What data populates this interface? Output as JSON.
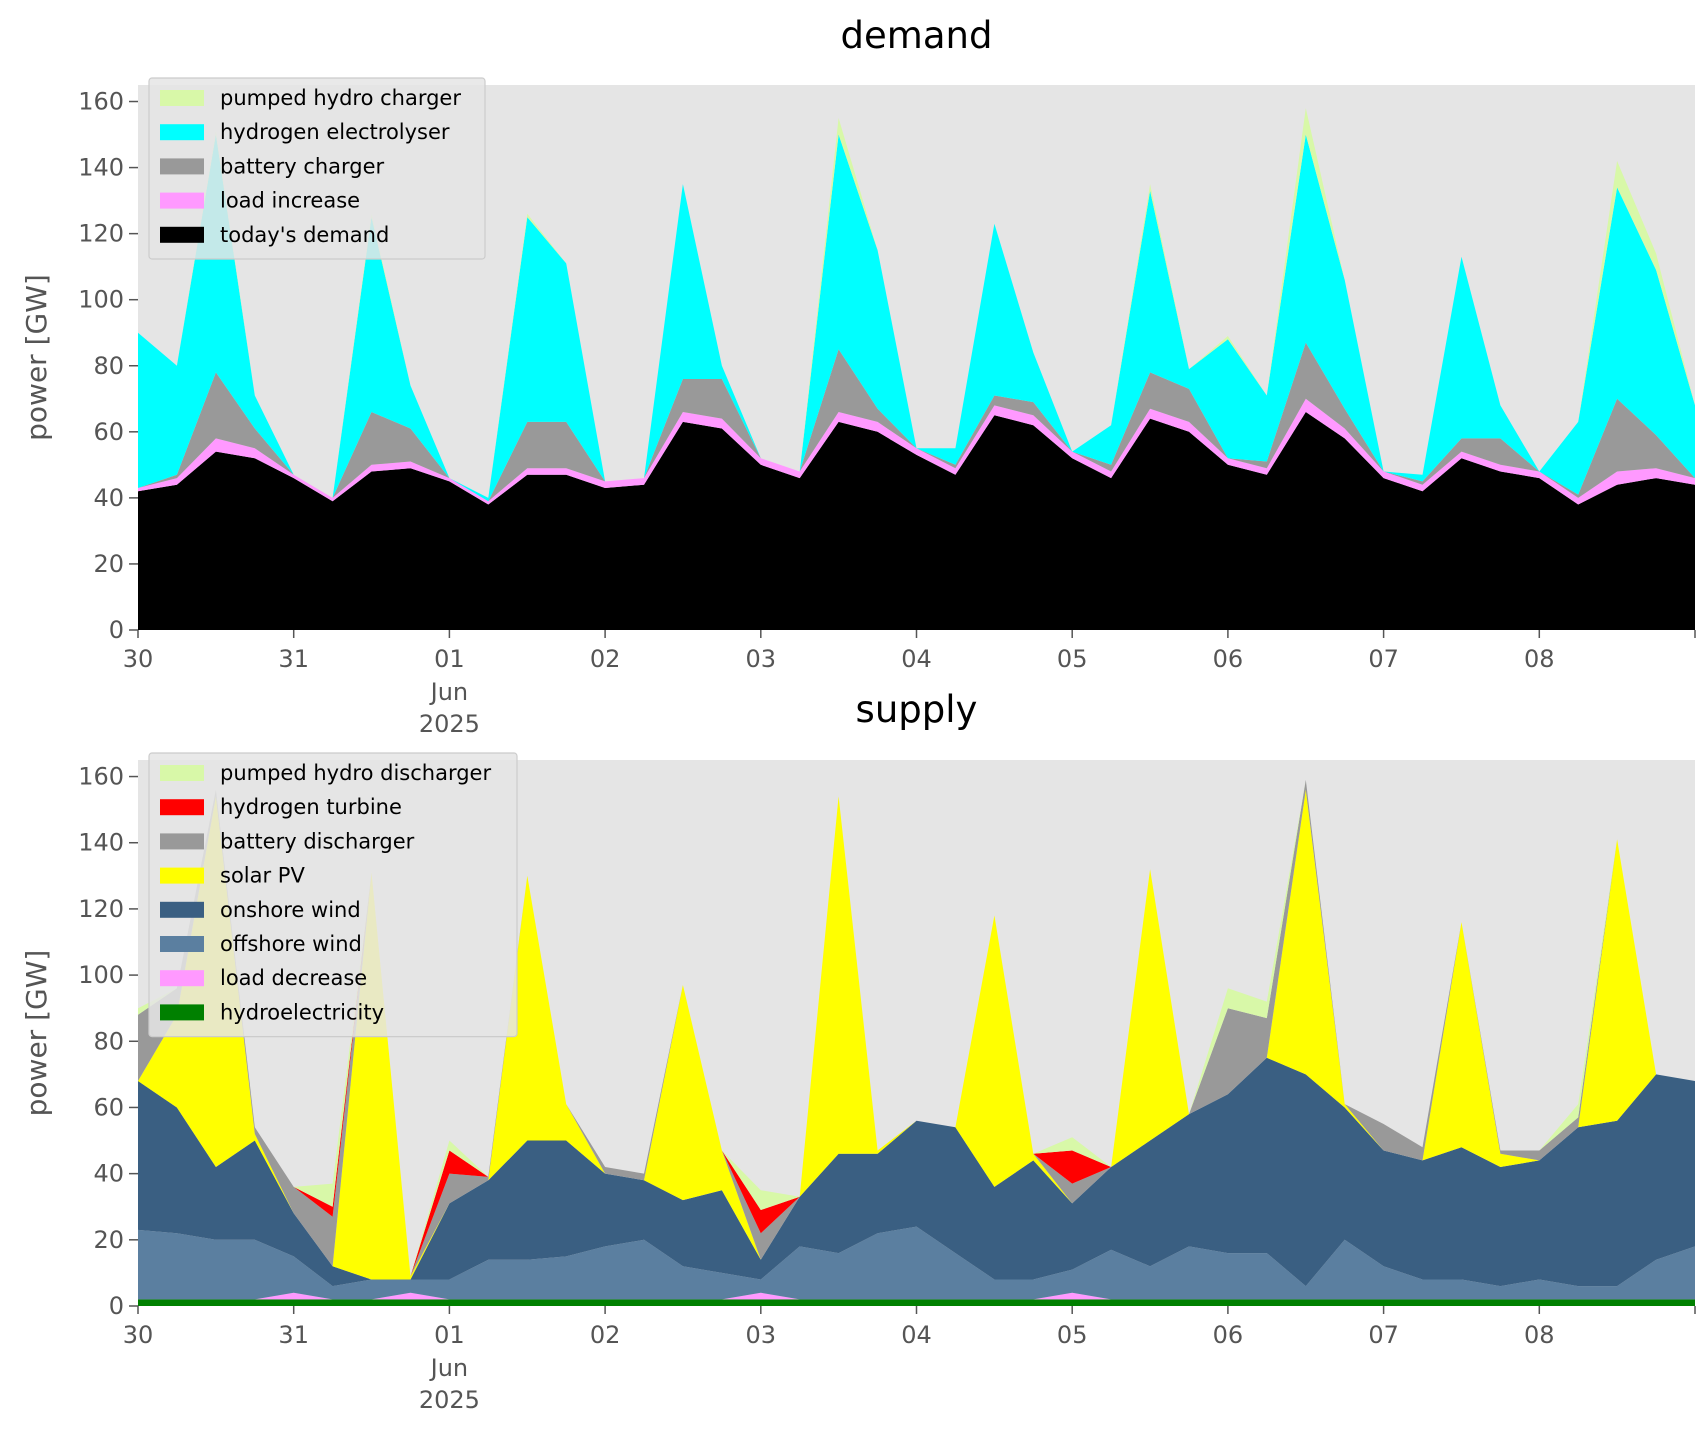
{
  "chart_data": [
    {
      "type": "area",
      "stacked": true,
      "title": "demand",
      "xlabel": "",
      "ylabel": "power [GW]",
      "ylim": [
        0,
        165
      ],
      "yticks": [
        0,
        20,
        40,
        60,
        80,
        100,
        120,
        140,
        160
      ],
      "xlim": [
        "2025-05-30",
        "2025-06-09"
      ],
      "xticks": [
        {
          "date": "2025-05-30",
          "label": "30"
        },
        {
          "date": "2025-05-31",
          "label": "31"
        },
        {
          "date": "2025-06-01",
          "label": "01"
        },
        {
          "date": "2025-06-02",
          "label": "02"
        },
        {
          "date": "2025-06-03",
          "label": "03"
        },
        {
          "date": "2025-06-04",
          "label": "04"
        },
        {
          "date": "2025-06-05",
          "label": "05"
        },
        {
          "date": "2025-06-06",
          "label": "06"
        },
        {
          "date": "2025-06-07",
          "label": "07"
        },
        {
          "date": "2025-06-08",
          "label": "08"
        },
        {
          "date": "2025-06-09",
          "label": ""
        }
      ],
      "xtick_sublabels": {
        "month": "Jun",
        "year": "2025"
      },
      "background": "#e5e5e5",
      "grid": false,
      "legend_position": "top-left",
      "legend_order": [
        "pumped hydro charger",
        "hydrogen electrolyser",
        "battery charger",
        "load increase",
        "today's demand"
      ],
      "x": [
        "2025-05-30 00:00",
        "2025-05-30 06:00",
        "2025-05-30 12:00",
        "2025-05-30 18:00",
        "2025-05-31 00:00",
        "2025-05-31 06:00",
        "2025-05-31 12:00",
        "2025-05-31 18:00",
        "2025-06-01 00:00",
        "2025-06-01 06:00",
        "2025-06-01 12:00",
        "2025-06-01 18:00",
        "2025-06-02 00:00",
        "2025-06-02 06:00",
        "2025-06-02 12:00",
        "2025-06-02 18:00",
        "2025-06-03 00:00",
        "2025-06-03 06:00",
        "2025-06-03 12:00",
        "2025-06-03 18:00",
        "2025-06-04 00:00",
        "2025-06-04 06:00",
        "2025-06-04 12:00",
        "2025-06-04 18:00",
        "2025-06-05 00:00",
        "2025-06-05 06:00",
        "2025-06-05 12:00",
        "2025-06-05 18:00",
        "2025-06-06 00:00",
        "2025-06-06 06:00",
        "2025-06-06 12:00",
        "2025-06-06 18:00",
        "2025-06-07 00:00",
        "2025-06-07 06:00",
        "2025-06-07 12:00",
        "2025-06-07 18:00",
        "2025-06-08 00:00",
        "2025-06-08 06:00",
        "2025-06-08 12:00",
        "2025-06-08 18:00",
        "2025-06-09 00:00"
      ],
      "series": [
        {
          "name": "today's demand",
          "color": "#000000",
          "values": [
            42,
            44,
            54,
            52,
            46,
            39,
            48,
            49,
            45,
            38,
            47,
            47,
            43,
            44,
            63,
            61,
            50,
            46,
            63,
            60,
            53,
            47,
            65,
            62,
            52,
            46,
            64,
            60,
            50,
            47,
            66,
            58,
            46,
            42,
            52,
            48,
            46,
            38,
            44,
            46,
            44
          ]
        },
        {
          "name": "load increase",
          "color": "#ff99ff",
          "values": [
            1,
            2,
            4,
            3,
            1,
            1,
            2,
            2,
            1,
            1,
            2,
            2,
            2,
            2,
            3,
            3,
            2,
            2,
            3,
            3,
            2,
            2,
            3,
            3,
            2,
            2,
            3,
            3,
            2,
            2,
            4,
            3,
            2,
            2,
            2,
            2,
            2,
            2,
            4,
            3,
            2
          ]
        },
        {
          "name": "battery charger",
          "color": "#999999",
          "values": [
            0,
            1,
            20,
            6,
            0,
            0,
            16,
            10,
            0,
            0,
            14,
            14,
            0,
            0,
            10,
            12,
            0,
            0,
            19,
            4,
            0,
            1,
            3,
            4,
            0,
            2,
            11,
            10,
            0,
            2,
            17,
            6,
            0,
            1,
            4,
            8,
            0,
            1,
            22,
            10,
            0
          ]
        },
        {
          "name": "hydrogen electrolyser",
          "color": "#00ffff",
          "values": [
            47,
            33,
            72,
            10,
            0,
            0,
            59,
            13,
            0,
            1,
            62,
            48,
            0,
            0,
            59,
            4,
            0,
            0,
            65,
            48,
            0,
            5,
            52,
            15,
            0,
            12,
            55,
            6,
            36,
            20,
            63,
            39,
            0,
            2,
            55,
            10,
            0,
            22,
            64,
            50,
            22
          ]
        },
        {
          "name": "pumped hydro charger",
          "color": "#d8f8a8",
          "values": [
            0,
            0,
            1,
            0,
            0,
            0,
            1,
            0,
            0,
            0,
            1,
            0,
            0,
            0,
            0,
            0,
            0,
            0,
            5,
            0,
            0,
            0,
            0,
            0,
            0,
            0,
            2,
            0,
            1,
            0,
            8,
            0,
            0,
            0,
            0,
            0,
            0,
            0,
            8,
            5,
            0
          ]
        }
      ]
    },
    {
      "type": "area",
      "stacked": true,
      "title": "supply",
      "xlabel": "",
      "ylabel": "power [GW]",
      "ylim": [
        0,
        165
      ],
      "yticks": [
        0,
        20,
        40,
        60,
        80,
        100,
        120,
        140,
        160
      ],
      "xlim": [
        "2025-05-30",
        "2025-06-09"
      ],
      "xticks": [
        {
          "date": "2025-05-30",
          "label": "30"
        },
        {
          "date": "2025-05-31",
          "label": "31"
        },
        {
          "date": "2025-06-01",
          "label": "01"
        },
        {
          "date": "2025-06-02",
          "label": "02"
        },
        {
          "date": "2025-06-03",
          "label": "03"
        },
        {
          "date": "2025-06-04",
          "label": "04"
        },
        {
          "date": "2025-06-05",
          "label": "05"
        },
        {
          "date": "2025-06-06",
          "label": "06"
        },
        {
          "date": "2025-06-07",
          "label": "07"
        },
        {
          "date": "2025-06-08",
          "label": "08"
        },
        {
          "date": "2025-06-09",
          "label": ""
        }
      ],
      "xtick_sublabels": {
        "month": "Jun",
        "year": "2025"
      },
      "background": "#e5e5e5",
      "grid": false,
      "legend_position": "top-left",
      "legend_order": [
        "pumped hydro discharger",
        "hydrogen turbine",
        "battery discharger",
        "solar PV",
        "onshore wind",
        "offshore wind",
        "load decrease",
        "hydroelectricity"
      ],
      "x": [
        "2025-05-30 00:00",
        "2025-05-30 06:00",
        "2025-05-30 12:00",
        "2025-05-30 18:00",
        "2025-05-31 00:00",
        "2025-05-31 06:00",
        "2025-05-31 12:00",
        "2025-05-31 18:00",
        "2025-06-01 00:00",
        "2025-06-01 06:00",
        "2025-06-01 12:00",
        "2025-06-01 18:00",
        "2025-06-02 00:00",
        "2025-06-02 06:00",
        "2025-06-02 12:00",
        "2025-06-02 18:00",
        "2025-06-03 00:00",
        "2025-06-03 06:00",
        "2025-06-03 12:00",
        "2025-06-03 18:00",
        "2025-06-04 00:00",
        "2025-06-04 06:00",
        "2025-06-04 12:00",
        "2025-06-04 18:00",
        "2025-06-05 00:00",
        "2025-06-05 06:00",
        "2025-06-05 12:00",
        "2025-06-05 18:00",
        "2025-06-06 00:00",
        "2025-06-06 06:00",
        "2025-06-06 12:00",
        "2025-06-06 18:00",
        "2025-06-07 00:00",
        "2025-06-07 06:00",
        "2025-06-07 12:00",
        "2025-06-07 18:00",
        "2025-06-08 00:00",
        "2025-06-08 06:00",
        "2025-06-08 12:00",
        "2025-06-08 18:00",
        "2025-06-09 00:00"
      ],
      "series": [
        {
          "name": "hydroelectricity",
          "color": "#008000",
          "values": [
            2,
            2,
            2,
            2,
            2,
            2,
            2,
            2,
            2,
            2,
            2,
            2,
            2,
            2,
            2,
            2,
            2,
            2,
            2,
            2,
            2,
            2,
            2,
            2,
            2,
            2,
            2,
            2,
            2,
            2,
            2,
            2,
            2,
            2,
            2,
            2,
            2,
            2,
            2,
            2,
            2
          ]
        },
        {
          "name": "load decrease",
          "color": "#ff99ff",
          "values": [
            0,
            0,
            0,
            0,
            2,
            0,
            0,
            2,
            0,
            0,
            0,
            0,
            0,
            0,
            0,
            0,
            2,
            0,
            0,
            0,
            0,
            0,
            0,
            0,
            2,
            0,
            0,
            0,
            0,
            0,
            0,
            0,
            0,
            0,
            0,
            0,
            0,
            0,
            0,
            0,
            0
          ]
        },
        {
          "name": "offshore wind",
          "color": "#5b7fa0",
          "values": [
            21,
            20,
            18,
            18,
            11,
            4,
            6,
            4,
            6,
            12,
            12,
            13,
            16,
            18,
            10,
            8,
            4,
            16,
            14,
            20,
            22,
            14,
            6,
            6,
            7,
            15,
            10,
            16,
            14,
            14,
            4,
            18,
            10,
            6,
            6,
            4,
            6,
            4,
            4,
            12,
            16
          ]
        },
        {
          "name": "onshore wind",
          "color": "#3a5f82",
          "values": [
            45,
            38,
            22,
            30,
            13,
            6,
            0,
            0,
            23,
            24,
            36,
            35,
            22,
            18,
            20,
            25,
            6,
            15,
            30,
            24,
            32,
            38,
            28,
            36,
            20,
            25,
            38,
            40,
            48,
            59,
            64,
            40,
            35,
            36,
            40,
            36,
            36,
            48,
            50,
            56,
            50
          ]
        },
        {
          "name": "solar PV",
          "color": "#ffff00",
          "values": [
            0,
            28,
            112,
            2,
            0,
            0,
            123,
            1,
            0,
            0,
            80,
            11,
            0,
            0,
            65,
            12,
            0,
            0,
            108,
            1,
            0,
            0,
            82,
            2,
            0,
            0,
            82,
            0,
            0,
            0,
            86,
            1,
            0,
            0,
            68,
            4,
            0,
            0,
            85,
            0,
            0
          ]
        },
        {
          "name": "battery discharger",
          "color": "#999999",
          "values": [
            20,
            8,
            2,
            2,
            8,
            15,
            0,
            0,
            9,
            1,
            0,
            0,
            2,
            2,
            0,
            0,
            8,
            0,
            0,
            0,
            0,
            0,
            0,
            0,
            6,
            0,
            0,
            0,
            26,
            12,
            3,
            0,
            8,
            4,
            0,
            1,
            3,
            3,
            0,
            0,
            0
          ]
        },
        {
          "name": "hydrogen turbine",
          "color": "#ff0000",
          "values": [
            0,
            0,
            0,
            0,
            0,
            3,
            0,
            0,
            7,
            0,
            0,
            0,
            0,
            0,
            0,
            0,
            7,
            0,
            0,
            0,
            0,
            0,
            0,
            0,
            10,
            0,
            0,
            0,
            0,
            0,
            0,
            0,
            0,
            0,
            0,
            0,
            0,
            0,
            0,
            0,
            0
          ]
        },
        {
          "name": "pumped hydro discharger",
          "color": "#d8f8a8",
          "values": [
            2,
            0,
            0,
            0,
            0,
            7,
            0,
            0,
            3,
            0,
            0,
            0,
            0,
            0,
            0,
            0,
            6,
            0,
            0,
            0,
            0,
            0,
            0,
            0,
            4,
            0,
            0,
            0,
            6,
            5,
            0,
            0,
            0,
            0,
            0,
            0,
            0,
            4,
            0,
            0,
            0
          ]
        }
      ]
    }
  ]
}
